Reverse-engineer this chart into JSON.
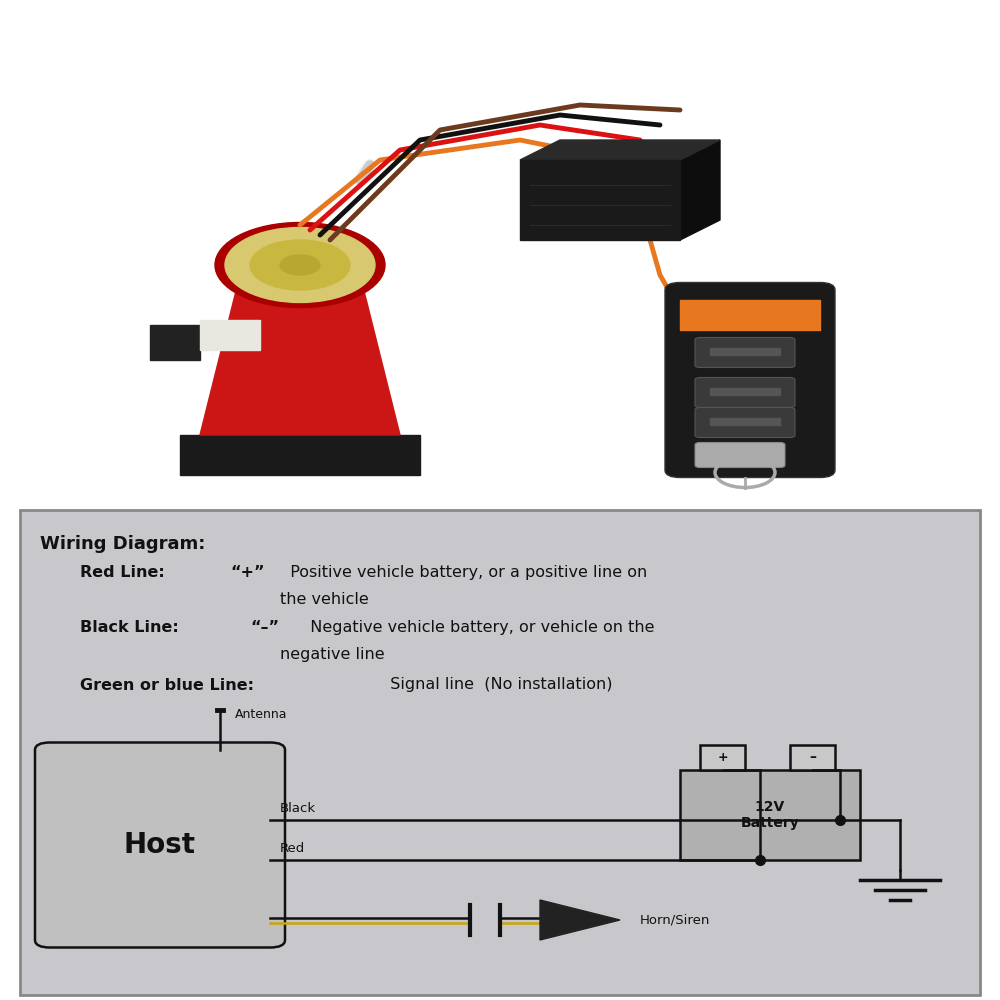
{
  "bg_top": "#ffffff",
  "bg_diagram": "#c8c8cc",
  "border_color": "#888888",
  "title": "Wiring Diagram:",
  "line1_bold": "Red Line:",
  "line1_sym": "“+”",
  "line1_text": "  Positive vehicle battery, or a positive line on",
  "line1_cont": "the vehicle",
  "line2_bold": "Black Line:",
  "line2_sym": "“–”",
  "line2_text": "  Negative vehicle battery, or vehicle on the",
  "line2_cont": "negative line",
  "line3_bold": "Green or blue Line:",
  "line3_text": "  Signal line  (No installation)",
  "host_label": "Host",
  "battery_label": "12V\nBattery",
  "antenna_label": "Antenna",
  "black_label": "Black",
  "red_label": "Red",
  "horn_label": "Horn/Siren",
  "plus_label": "+",
  "minus_label": "–"
}
